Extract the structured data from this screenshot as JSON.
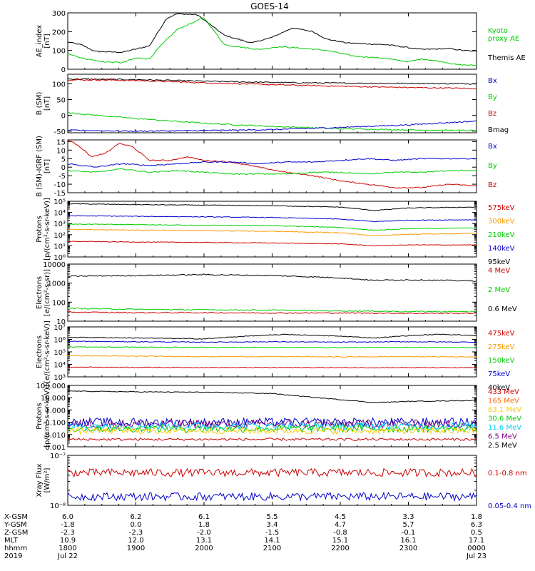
{
  "title": "GOES-14",
  "chart_data": [
    {
      "type": "line",
      "ylabel": "AE_index\n[nT]",
      "ylim": [
        0,
        300
      ],
      "yticks": [
        {
          "v": 0,
          "label": "0"
        },
        {
          "v": 100,
          "label": "100"
        },
        {
          "v": 200,
          "label": "200"
        },
        {
          "v": 300,
          "label": "300"
        }
      ],
      "legend": [
        "Kyoto\nproxy AE",
        "Themis AE"
      ],
      "series": [
        {
          "name": "Themis AE",
          "color": "#000000",
          "x": [
            0,
            0.2,
            0.4,
            0.8,
            1.2,
            1.45,
            1.6,
            1.9,
            2.3,
            2.7,
            3.0,
            3.3,
            3.6,
            3.8,
            4.1,
            4.4,
            4.7,
            5.2,
            5.6,
            5.8,
            6.0
          ],
          "y": [
            145,
            130,
            95,
            90,
            125,
            270,
            295,
            290,
            180,
            140,
            170,
            220,
            200,
            160,
            140,
            135,
            130,
            105,
            110,
            100,
            95
          ]
        },
        {
          "name": "Kyoto proxy AE",
          "color": "#00cc00",
          "x": [
            0,
            0.2,
            0.5,
            0.8,
            1.0,
            1.2,
            1.35,
            1.6,
            2.0,
            2.3,
            2.8,
            3.1,
            3.5,
            3.8,
            4.2,
            4.6,
            5.0,
            5.2,
            5.5,
            5.7,
            6.0
          ],
          "y": [
            85,
            60,
            40,
            35,
            60,
            55,
            120,
            210,
            275,
            130,
            105,
            120,
            110,
            100,
            70,
            60,
            40,
            55,
            40,
            25,
            20
          ]
        }
      ]
    },
    {
      "type": "line",
      "ylabel": "B (SM)\n[nT]",
      "ylim": [
        -55,
        130
      ],
      "yticks": [
        {
          "v": -50,
          "label": "-50"
        },
        {
          "v": 0,
          "label": "0"
        },
        {
          "v": 50,
          "label": "50"
        },
        {
          "v": 100,
          "label": "100"
        }
      ],
      "legend": [
        "Bx",
        "By",
        "Bz",
        "Bmag"
      ],
      "series": [
        {
          "name": "Bmag",
          "color": "#000000",
          "x": [
            0,
            1,
            2,
            3,
            4,
            5,
            6
          ],
          "y": [
            115,
            113,
            108,
            104,
            102,
            101,
            100
          ]
        },
        {
          "name": "Bz",
          "color": "#cc0000",
          "x": [
            0,
            0.5,
            1,
            2,
            3,
            4,
            5,
            6
          ],
          "y": [
            112,
            112,
            110,
            103,
            97,
            92,
            88,
            85
          ]
        },
        {
          "name": "By",
          "color": "#00cc00",
          "x": [
            0,
            1,
            2,
            3,
            4,
            5,
            6
          ],
          "y": [
            8,
            -10,
            -25,
            -35,
            -42,
            -46,
            -48
          ]
        },
        {
          "name": "Bx",
          "color": "#0000cc",
          "x": [
            0,
            1,
            2,
            3,
            4,
            5,
            6
          ],
          "y": [
            -47,
            -50,
            -48,
            -45,
            -38,
            -30,
            -18
          ]
        }
      ]
    },
    {
      "type": "line",
      "ylabel": "B (SM)-IGRF (SM)\n[nT]",
      "ylim": [
        -15,
        16
      ],
      "yticks": [
        {
          "v": -15,
          "label": "-15"
        },
        {
          "v": -10,
          "label": "-10"
        },
        {
          "v": -5,
          "label": "-5"
        },
        {
          "v": 0,
          "label": "0"
        },
        {
          "v": 5,
          "label": "5"
        },
        {
          "v": 10,
          "label": "10"
        },
        {
          "v": 15,
          "label": "15"
        }
      ],
      "legend": [
        "Bx",
        "By",
        "Bz"
      ],
      "series": [
        {
          "name": "Bz",
          "color": "#cc0000",
          "x": [
            0,
            0.15,
            0.35,
            0.55,
            0.75,
            0.95,
            1.2,
            1.5,
            1.75,
            2.0,
            2.4,
            2.8,
            3.2,
            3.6,
            4.0,
            4.4,
            4.8,
            5.2,
            5.6,
            6.0
          ],
          "y": [
            16,
            13,
            6,
            8,
            14,
            12,
            4,
            4,
            6,
            4,
            3,
            0,
            -3,
            -5,
            -8,
            -10,
            -12,
            -12,
            -10,
            -11
          ]
        },
        {
          "name": "Bx",
          "color": "#0000cc",
          "x": [
            0,
            0.4,
            0.8,
            1.2,
            1.6,
            2.0,
            2.4,
            2.8,
            3.2,
            3.6,
            4.0,
            4.4,
            4.8,
            5.2,
            5.6,
            6.0
          ],
          "y": [
            2,
            0,
            2,
            1,
            2,
            3,
            3,
            2,
            3,
            3,
            4,
            5,
            4,
            5,
            5,
            5
          ]
        },
        {
          "name": "By",
          "color": "#00cc00",
          "x": [
            0,
            0.4,
            0.8,
            1.2,
            1.6,
            2.0,
            2.4,
            2.8,
            3.2,
            3.6,
            4.0,
            4.4,
            4.8,
            5.2,
            5.6,
            6.0
          ],
          "y": [
            -2,
            -3,
            -1,
            -3,
            -2,
            -3,
            -4,
            -4,
            -4,
            -3,
            -3,
            -4,
            -3,
            -3,
            -2,
            -2
          ]
        }
      ]
    },
    {
      "type": "line",
      "log": true,
      "ylabel": "Protons\n[p/(cm²-s-sr-keV)]",
      "ylim": [
        1,
        100000
      ],
      "yticks": [
        {
          "v": 1,
          "label": "10⁰"
        },
        {
          "v": 10,
          "label": "10¹"
        },
        {
          "v": 100,
          "label": "10²"
        },
        {
          "v": 1000,
          "label": "10³"
        },
        {
          "v": 10000,
          "label": "10⁴"
        },
        {
          "v": 100000,
          "label": "10⁵"
        }
      ],
      "legend": [
        "575keV",
        "300keV",
        "210keV",
        "140keV",
        "95keV"
      ],
      "series": [
        {
          "name": "575keV",
          "color": "#000000",
          "x": [
            0,
            1,
            2,
            3,
            4,
            4.5,
            5,
            6
          ],
          "y": [
            60000,
            50000,
            45000,
            40000,
            30000,
            15000,
            25000,
            30000
          ]
        },
        {
          "name": "300keV",
          "color": "#0000cc",
          "x": [
            0,
            1,
            2,
            3,
            4,
            4.5,
            5,
            6
          ],
          "y": [
            5000,
            4500,
            4000,
            3500,
            2500,
            1500,
            2000,
            2200
          ]
        },
        {
          "name": "210keV",
          "color": "#00cc00",
          "x": [
            0,
            1,
            2,
            3,
            4,
            4.5,
            5,
            6
          ],
          "y": [
            900,
            800,
            700,
            650,
            450,
            250,
            350,
            400
          ]
        },
        {
          "name": "140keV",
          "color": "#ff9900",
          "x": [
            0,
            1,
            2,
            3,
            4,
            4.5,
            5,
            6
          ],
          "y": [
            300,
            260,
            230,
            200,
            150,
            80,
            110,
            130
          ]
        },
        {
          "name": "95keV",
          "color": "#cc0000",
          "x": [
            0,
            1,
            2,
            3,
            4,
            4.5,
            5,
            6
          ],
          "y": [
            25,
            22,
            20,
            18,
            15,
            10,
            12,
            12
          ]
        }
      ]
    },
    {
      "type": "line",
      "log": true,
      "ylabel": "Electrons\n[e/(cm²-s-sr)]",
      "ylim": [
        10,
        10000
      ],
      "yticks": [
        {
          "v": 10,
          "label": "10"
        },
        {
          "v": 100,
          "label": "100"
        },
        {
          "v": 1000,
          "label": "1000"
        },
        {
          "v": 10000,
          "label": "10000"
        }
      ],
      "legend": [
        "4 MeV",
        "2 MeV",
        "0.6 MeV"
      ],
      "series": [
        {
          "name": "0.6 MeV",
          "color": "#000000",
          "x": [
            0,
            1,
            2,
            3,
            4,
            4.5,
            5,
            6
          ],
          "y": [
            2300,
            2500,
            2800,
            2500,
            1900,
            1400,
            1500,
            1300
          ]
        },
        {
          "name": "2 MeV",
          "color": "#00cc00",
          "x": [
            0,
            1,
            2,
            3,
            4,
            5,
            6
          ],
          "y": [
            48,
            42,
            40,
            38,
            35,
            32,
            32
          ]
        },
        {
          "name": "4 MeV",
          "color": "#cc0000",
          "x": [
            0,
            1,
            2,
            3,
            4,
            5,
            6
          ],
          "y": [
            30,
            28,
            28,
            27,
            27,
            26,
            26
          ]
        }
      ]
    },
    {
      "type": "line",
      "log": true,
      "ylabel": "Electrons\n[e/(cm²-s-sr-keV)]",
      "ylim": [
        1000,
        10000000
      ],
      "yticks": [
        {
          "v": 1000,
          "label": "10³"
        },
        {
          "v": 10000,
          "label": "10⁴"
        },
        {
          "v": 100000,
          "label": "10⁵"
        },
        {
          "v": 1000000,
          "label": "10⁶"
        },
        {
          "v": 10000000,
          "label": "10⁷"
        }
      ],
      "legend": [
        "475keV",
        "275keV",
        "150keV",
        "75keV",
        "40keV"
      ],
      "series": [
        {
          "name": "475keV",
          "color": "#000000",
          "x": [
            0,
            1,
            2,
            2.6,
            3.2,
            4,
            4.5,
            5,
            5.5,
            6
          ],
          "y": [
            1500000,
            1300000,
            1100000,
            1800000,
            2500000,
            1800000,
            1300000,
            2000000,
            2600000,
            2000000
          ]
        },
        {
          "name": "275keV",
          "color": "#0000cc",
          "x": [
            0,
            1,
            2,
            3,
            4,
            5,
            6
          ],
          "y": [
            700000,
            650000,
            600000,
            650000,
            600000,
            650000,
            600000
          ]
        },
        {
          "name": "150keV",
          "color": "#00cc00",
          "x": [
            0,
            1,
            2,
            3,
            4,
            5,
            6
          ],
          "y": [
            250000,
            240000,
            230000,
            230000,
            220000,
            230000,
            220000
          ]
        },
        {
          "name": "75keV",
          "color": "#ff9900",
          "x": [
            0,
            1,
            2,
            3,
            4,
            5,
            6
          ],
          "y": [
            50000,
            45000,
            42000,
            42000,
            40000,
            42000,
            40000
          ]
        },
        {
          "name": "40keV",
          "color": "#cc0000",
          "x": [
            0,
            1,
            2,
            3,
            4,
            5,
            6
          ],
          "y": [
            6000,
            5800,
            5600,
            5600,
            5500,
            5500,
            5400
          ]
        }
      ]
    },
    {
      "type": "line",
      "log": true,
      "ylabel": "Protons\n[p/(cm²-s-sr-keV)]",
      "ylim": [
        0.001,
        100
      ],
      "yticks": [
        {
          "v": 0.001,
          "label": "0.001"
        },
        {
          "v": 0.01,
          "label": "0.010"
        },
        {
          "v": 0.1,
          "label": "0.100"
        },
        {
          "v": 1,
          "label": "1.000"
        },
        {
          "v": 10,
          "label": "10.000"
        },
        {
          "v": 100,
          "label": "100.000"
        }
      ],
      "legend": [
        "433 MeV",
        "165 MeV",
        "63.1 MeV",
        "30.6 MeV",
        "11.6 MeV",
        "6.5 MeV",
        "2.5 MeV"
      ],
      "series": [
        {
          "name": "2.5 MeV",
          "color": "#000000",
          "x": [
            0,
            1,
            2,
            3,
            3.5,
            4,
            4.5,
            5,
            6
          ],
          "y": [
            35,
            30,
            28,
            22,
            12,
            7,
            4,
            5,
            6
          ]
        },
        {
          "name": "6.5 MeV",
          "color": "#0000cc",
          "x": [
            0,
            6
          ],
          "y": [
            0.1,
            0.1
          ],
          "noise": 0.35
        },
        {
          "name": "11.6 MeV",
          "color": "#800080",
          "x": [
            0,
            6
          ],
          "y": [
            0.07,
            0.07
          ],
          "noise": 0.35
        },
        {
          "name": "30.6 MeV",
          "color": "#00ccff",
          "x": [
            0,
            6
          ],
          "y": [
            0.05,
            0.05
          ],
          "noise": 0.3
        },
        {
          "name": "63.1 MeV",
          "color": "#00cc00",
          "x": [
            0,
            6
          ],
          "y": [
            0.03,
            0.03
          ],
          "noise": 0.3
        },
        {
          "name": "165 MeV",
          "color": "#ffcc00",
          "x": [
            0,
            6
          ],
          "y": [
            0.02,
            0.02
          ],
          "noise": 0.25
        },
        {
          "name": "433 MeV",
          "color": "#cc0000",
          "x": [
            0,
            6
          ],
          "y": [
            0.004,
            0.004
          ],
          "noise": 0.1
        }
      ]
    },
    {
      "type": "line",
      "log": true,
      "ylabel": "Xray Flux\n[W/m²]",
      "ylim": [
        1e-08,
        1e-07
      ],
      "yticks": [
        {
          "v": 1e-08,
          "label": "10⁻⁸"
        },
        {
          "v": 1e-07,
          "label": "10⁻⁷"
        }
      ],
      "legend": [
        "0.1-0.8 nm",
        "0.05-0.4 nm"
      ],
      "series": [
        {
          "name": "0.1-0.8 nm",
          "color": "#cc0000",
          "x": [
            0,
            6
          ],
          "y": [
            4.5e-08,
            4.5e-08
          ],
          "noise": 0.08
        },
        {
          "name": "0.05-0.4 nm",
          "color": "#0000cc",
          "x": [
            0,
            6
          ],
          "y": [
            1.5e-08,
            1.5e-08
          ],
          "noise": 0.08
        }
      ]
    }
  ],
  "legend_colors": [
    [
      "#00cc00",
      "#000000"
    ],
    [
      "#0000cc",
      "#00cc00",
      "#cc0000",
      "#000000"
    ],
    [
      "#0000cc",
      "#00cc00",
      "#cc0000"
    ],
    [
      "#cc0000",
      "#ff9900",
      "#00cc00",
      "#0000cc",
      "#000000"
    ],
    [
      "#cc0000",
      "#00cc00",
      "#000000"
    ],
    [
      "#cc0000",
      "#ff9900",
      "#00cc00",
      "#0000cc",
      "#000000"
    ],
    [
      "#cc0000",
      "#ff6600",
      "#ffcc00",
      "#00cc00",
      "#00ccff",
      "#800080",
      "#000000"
    ],
    [
      "#cc0000",
      "#0000cc"
    ]
  ],
  "x_axis": {
    "row_labels": [
      "X-GSM",
      "Y-GSM",
      "Z-GSM",
      "MLT",
      "hhmm",
      "2019"
    ],
    "columns": [
      [
        "6.0",
        "-1.8",
        "-2.3",
        "10.9",
        "1800",
        "Jul 22"
      ],
      [
        "6.2",
        "0.0",
        "-2.3",
        "12.0",
        "1900",
        ""
      ],
      [
        "6.1",
        "1.8",
        "-2.0",
        "13.1",
        "2000",
        ""
      ],
      [
        "5.5",
        "3.4",
        "-1.5",
        "14.1",
        "2100",
        ""
      ],
      [
        "4.5",
        "4.7",
        "-0.8",
        "15.1",
        "2200",
        ""
      ],
      [
        "3.3",
        "5.7",
        "-0.1",
        "16.1",
        "2300",
        ""
      ],
      [
        "1.8",
        "6.3",
        "0.5",
        "17.1",
        "0000",
        "Jul 23"
      ]
    ]
  }
}
